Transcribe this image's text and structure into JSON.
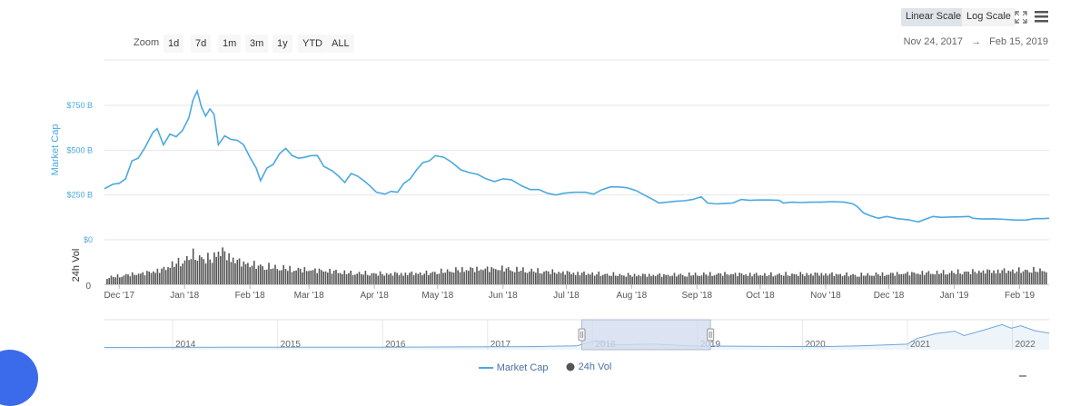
{
  "toolbar": {
    "zoom_label": "Zoom",
    "zoom_buttons": [
      "1d",
      "7d",
      "1m",
      "3m",
      "1y",
      "YTD",
      "ALL"
    ],
    "scale_buttons": [
      "Linear Scale",
      "Log Scale"
    ],
    "active_scale": "Linear Scale",
    "date_from": "Nov 24, 2017",
    "arrow": "→",
    "date_to": "Feb 15, 2019",
    "fullscreen_icon": "fullscreen-icon",
    "menu_icon": "hamburger-menu-icon"
  },
  "colors": {
    "market_cap": "#4aa9e0",
    "volume": "#555555",
    "navigator_line": "#6fa7d8",
    "navigator_mask": "#d3dcef",
    "grid": "#e6e6e6",
    "axis_text": "#555555",
    "fab": "#3b6bea"
  },
  "legend": {
    "items": [
      {
        "name": "Market Cap",
        "marker": "line"
      },
      {
        "name": "24h Vol",
        "marker": "circle"
      }
    ]
  },
  "chart_data": [
    {
      "type": "line",
      "title": "",
      "ylabel": "Market Cap",
      "ylim": [
        0,
        850
      ],
      "ytick_labels": [
        "$0",
        "$250 B",
        "$500 B",
        "$750 B"
      ],
      "yticks": [
        0,
        250,
        500,
        750
      ],
      "x_start": "2017-11-24",
      "x_end": "2019-02-15",
      "xtick_labels": [
        "Dec '17",
        "Jan '18",
        "Feb '18",
        "Mar '18",
        "Apr '18",
        "May '18",
        "Jun '18",
        "Jul '18",
        "Aug '18",
        "Sep '18",
        "Oct '18",
        "Nov '18",
        "Dec '18",
        "Jan '19",
        "Feb '19"
      ],
      "xticks": [
        "2017-12-01",
        "2018-01-01",
        "2018-02-01",
        "2018-03-01",
        "2018-04-01",
        "2018-05-01",
        "2018-06-01",
        "2018-07-01",
        "2018-08-01",
        "2018-09-01",
        "2018-10-01",
        "2018-11-01",
        "2018-12-01",
        "2019-01-01",
        "2019-02-01"
      ],
      "series": [
        {
          "name": "Market Cap",
          "points": [
            [
              "2017-11-24",
              285
            ],
            [
              "2017-11-28",
              310
            ],
            [
              "2017-12-01",
              315
            ],
            [
              "2017-12-04",
              340
            ],
            [
              "2017-12-07",
              440
            ],
            [
              "2017-12-10",
              455
            ],
            [
              "2017-12-13",
              510
            ],
            [
              "2017-12-17",
              600
            ],
            [
              "2017-12-19",
              620
            ],
            [
              "2017-12-22",
              530
            ],
            [
              "2017-12-25",
              590
            ],
            [
              "2017-12-28",
              575
            ],
            [
              "2017-12-31",
              610
            ],
            [
              "2018-01-03",
              680
            ],
            [
              "2018-01-05",
              780
            ],
            [
              "2018-01-07",
              830
            ],
            [
              "2018-01-09",
              740
            ],
            [
              "2018-01-11",
              690
            ],
            [
              "2018-01-13",
              730
            ],
            [
              "2018-01-15",
              700
            ],
            [
              "2018-01-17",
              530
            ],
            [
              "2018-01-20",
              580
            ],
            [
              "2018-01-23",
              560
            ],
            [
              "2018-01-26",
              555
            ],
            [
              "2018-01-29",
              530
            ],
            [
              "2018-02-01",
              460
            ],
            [
              "2018-02-04",
              400
            ],
            [
              "2018-02-06",
              330
            ],
            [
              "2018-02-09",
              400
            ],
            [
              "2018-02-12",
              420
            ],
            [
              "2018-02-15",
              480
            ],
            [
              "2018-02-18",
              510
            ],
            [
              "2018-02-21",
              470
            ],
            [
              "2018-02-24",
              455
            ],
            [
              "2018-02-27",
              460
            ],
            [
              "2018-03-02",
              470
            ],
            [
              "2018-03-05",
              470
            ],
            [
              "2018-03-08",
              410
            ],
            [
              "2018-03-12",
              385
            ],
            [
              "2018-03-15",
              355
            ],
            [
              "2018-03-18",
              320
            ],
            [
              "2018-03-21",
              370
            ],
            [
              "2018-03-24",
              355
            ],
            [
              "2018-03-27",
              330
            ],
            [
              "2018-03-30",
              300
            ],
            [
              "2018-04-02",
              265
            ],
            [
              "2018-04-06",
              255
            ],
            [
              "2018-04-09",
              270
            ],
            [
              "2018-04-12",
              265
            ],
            [
              "2018-04-15",
              315
            ],
            [
              "2018-04-18",
              340
            ],
            [
              "2018-04-21",
              390
            ],
            [
              "2018-04-24",
              430
            ],
            [
              "2018-04-27",
              440
            ],
            [
              "2018-04-30",
              470
            ],
            [
              "2018-05-04",
              460
            ],
            [
              "2018-05-08",
              430
            ],
            [
              "2018-05-12",
              390
            ],
            [
              "2018-05-16",
              375
            ],
            [
              "2018-05-20",
              365
            ],
            [
              "2018-05-24",
              340
            ],
            [
              "2018-05-28",
              325
            ],
            [
              "2018-06-01",
              340
            ],
            [
              "2018-06-05",
              335
            ],
            [
              "2018-06-10",
              300
            ],
            [
              "2018-06-14",
              280
            ],
            [
              "2018-06-18",
              280
            ],
            [
              "2018-06-22",
              260
            ],
            [
              "2018-06-26",
              250
            ],
            [
              "2018-06-30",
              260
            ],
            [
              "2018-07-05",
              265
            ],
            [
              "2018-07-10",
              265
            ],
            [
              "2018-07-14",
              255
            ],
            [
              "2018-07-18",
              280
            ],
            [
              "2018-07-22",
              295
            ],
            [
              "2018-07-26",
              295
            ],
            [
              "2018-07-30",
              290
            ],
            [
              "2018-08-03",
              275
            ],
            [
              "2018-08-07",
              250
            ],
            [
              "2018-08-11",
              225
            ],
            [
              "2018-08-14",
              205
            ],
            [
              "2018-08-18",
              210
            ],
            [
              "2018-08-22",
              215
            ],
            [
              "2018-08-26",
              218
            ],
            [
              "2018-08-30",
              225
            ],
            [
              "2018-09-03",
              240
            ],
            [
              "2018-09-06",
              205
            ],
            [
              "2018-09-10",
              200
            ],
            [
              "2018-09-14",
              202
            ],
            [
              "2018-09-18",
              205
            ],
            [
              "2018-09-22",
              225
            ],
            [
              "2018-09-26",
              220
            ],
            [
              "2018-09-30",
              222
            ],
            [
              "2018-10-05",
              222
            ],
            [
              "2018-10-10",
              220
            ],
            [
              "2018-10-12",
              205
            ],
            [
              "2018-10-16",
              210
            ],
            [
              "2018-10-20",
              208
            ],
            [
              "2018-10-25",
              210
            ],
            [
              "2018-10-30",
              210
            ],
            [
              "2018-11-04",
              213
            ],
            [
              "2018-11-10",
              210
            ],
            [
              "2018-11-14",
              200
            ],
            [
              "2018-11-16",
              185
            ],
            [
              "2018-11-19",
              150
            ],
            [
              "2018-11-22",
              135
            ],
            [
              "2018-11-26",
              120
            ],
            [
              "2018-11-30",
              130
            ],
            [
              "2018-12-05",
              118
            ],
            [
              "2018-12-10",
              112
            ],
            [
              "2018-12-15",
              100
            ],
            [
              "2018-12-19",
              118
            ],
            [
              "2018-12-22",
              130
            ],
            [
              "2018-12-26",
              125
            ],
            [
              "2018-12-30",
              127
            ],
            [
              "2019-01-04",
              128
            ],
            [
              "2019-01-08",
              130
            ],
            [
              "2019-01-10",
              120
            ],
            [
              "2019-01-14",
              116
            ],
            [
              "2019-01-20",
              117
            ],
            [
              "2019-01-25",
              114
            ],
            [
              "2019-01-30",
              110
            ],
            [
              "2019-02-04",
              110
            ],
            [
              "2019-02-08",
              118
            ],
            [
              "2019-02-12",
              118
            ],
            [
              "2019-02-15",
              120
            ]
          ]
        },
        {
          "name": "24h Vol",
          "axis_label": "24h Vol",
          "axis_tick": "0",
          "type": "column",
          "relative_levels": [
            [
              0.0,
              0.18
            ],
            [
              0.02,
              0.25
            ],
            [
              0.04,
              0.3
            ],
            [
              0.06,
              0.4
            ],
            [
              0.07,
              0.55
            ],
            [
              0.08,
              0.6
            ],
            [
              0.09,
              0.78
            ],
            [
              0.1,
              0.72
            ],
            [
              0.11,
              0.68
            ],
            [
              0.12,
              0.9
            ],
            [
              0.13,
              0.75
            ],
            [
              0.14,
              0.6
            ],
            [
              0.16,
              0.5
            ],
            [
              0.18,
              0.45
            ],
            [
              0.2,
              0.4
            ],
            [
              0.22,
              0.38
            ],
            [
              0.24,
              0.35
            ],
            [
              0.26,
              0.3
            ],
            [
              0.3,
              0.28
            ],
            [
              0.34,
              0.3
            ],
            [
              0.38,
              0.4
            ],
            [
              0.42,
              0.42
            ],
            [
              0.46,
              0.35
            ],
            [
              0.5,
              0.3
            ],
            [
              0.55,
              0.25
            ],
            [
              0.6,
              0.25
            ],
            [
              0.66,
              0.28
            ],
            [
              0.7,
              0.26
            ],
            [
              0.76,
              0.28
            ],
            [
              0.8,
              0.25
            ],
            [
              0.86,
              0.3
            ],
            [
              0.9,
              0.32
            ],
            [
              0.95,
              0.36
            ],
            [
              1.0,
              0.38
            ]
          ]
        }
      ]
    },
    {
      "type": "area",
      "role": "navigator",
      "xtick_labels": [
        "2014",
        "2015",
        "2016",
        "2017",
        "2018",
        "2019",
        "2020",
        "2021",
        "2022"
      ],
      "selected_range": [
        "2017-11-24",
        "2019-02-15"
      ],
      "relative_levels": [
        [
          0.0,
          0.02
        ],
        [
          0.15,
          0.03
        ],
        [
          0.3,
          0.03
        ],
        [
          0.45,
          0.05
        ],
        [
          0.5,
          0.08
        ],
        [
          0.52,
          0.3
        ],
        [
          0.54,
          0.12
        ],
        [
          0.58,
          0.16
        ],
        [
          0.62,
          0.08
        ],
        [
          0.7,
          0.06
        ],
        [
          0.76,
          0.05
        ],
        [
          0.8,
          0.08
        ],
        [
          0.85,
          0.15
        ],
        [
          0.86,
          0.38
        ],
        [
          0.88,
          0.58
        ],
        [
          0.9,
          0.68
        ],
        [
          0.91,
          0.5
        ],
        [
          0.93,
          0.72
        ],
        [
          0.95,
          0.95
        ],
        [
          0.96,
          0.8
        ],
        [
          0.97,
          0.9
        ],
        [
          0.985,
          0.7
        ],
        [
          1.0,
          0.6
        ]
      ]
    }
  ]
}
